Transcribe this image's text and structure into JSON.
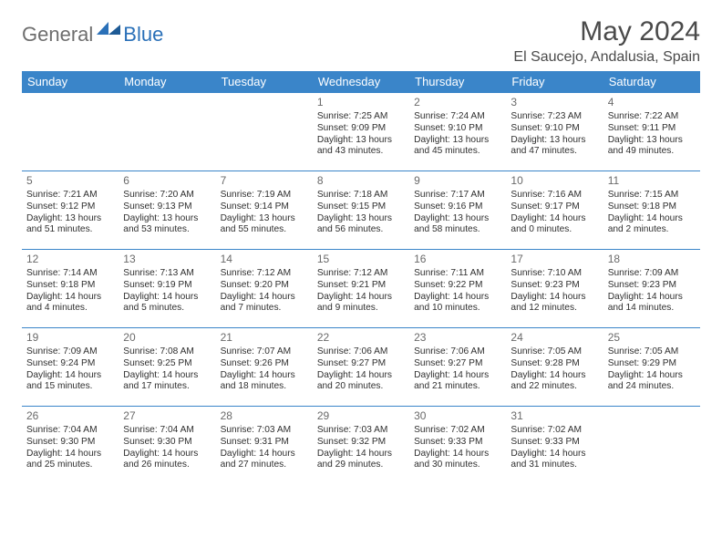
{
  "logo": {
    "general": "General",
    "blue": "Blue"
  },
  "title": "May 2024",
  "location": "El Saucejo, Andalusia, Spain",
  "colors": {
    "header_bg": "#3a85c9",
    "header_text": "#ffffff",
    "border": "#3a85c9",
    "title_color": "#4a4a4a",
    "logo_gray": "#6e6e6e",
    "logo_blue": "#2a70b8"
  },
  "weekdays": [
    "Sunday",
    "Monday",
    "Tuesday",
    "Wednesday",
    "Thursday",
    "Friday",
    "Saturday"
  ],
  "weeks": [
    [
      null,
      null,
      null,
      {
        "n": "1",
        "sr": "Sunrise: 7:25 AM",
        "ss": "Sunset: 9:09 PM",
        "d1": "Daylight: 13 hours",
        "d2": "and 43 minutes."
      },
      {
        "n": "2",
        "sr": "Sunrise: 7:24 AM",
        "ss": "Sunset: 9:10 PM",
        "d1": "Daylight: 13 hours",
        "d2": "and 45 minutes."
      },
      {
        "n": "3",
        "sr": "Sunrise: 7:23 AM",
        "ss": "Sunset: 9:10 PM",
        "d1": "Daylight: 13 hours",
        "d2": "and 47 minutes."
      },
      {
        "n": "4",
        "sr": "Sunrise: 7:22 AM",
        "ss": "Sunset: 9:11 PM",
        "d1": "Daylight: 13 hours",
        "d2": "and 49 minutes."
      }
    ],
    [
      {
        "n": "5",
        "sr": "Sunrise: 7:21 AM",
        "ss": "Sunset: 9:12 PM",
        "d1": "Daylight: 13 hours",
        "d2": "and 51 minutes."
      },
      {
        "n": "6",
        "sr": "Sunrise: 7:20 AM",
        "ss": "Sunset: 9:13 PM",
        "d1": "Daylight: 13 hours",
        "d2": "and 53 minutes."
      },
      {
        "n": "7",
        "sr": "Sunrise: 7:19 AM",
        "ss": "Sunset: 9:14 PM",
        "d1": "Daylight: 13 hours",
        "d2": "and 55 minutes."
      },
      {
        "n": "8",
        "sr": "Sunrise: 7:18 AM",
        "ss": "Sunset: 9:15 PM",
        "d1": "Daylight: 13 hours",
        "d2": "and 56 minutes."
      },
      {
        "n": "9",
        "sr": "Sunrise: 7:17 AM",
        "ss": "Sunset: 9:16 PM",
        "d1": "Daylight: 13 hours",
        "d2": "and 58 minutes."
      },
      {
        "n": "10",
        "sr": "Sunrise: 7:16 AM",
        "ss": "Sunset: 9:17 PM",
        "d1": "Daylight: 14 hours",
        "d2": "and 0 minutes."
      },
      {
        "n": "11",
        "sr": "Sunrise: 7:15 AM",
        "ss": "Sunset: 9:18 PM",
        "d1": "Daylight: 14 hours",
        "d2": "and 2 minutes."
      }
    ],
    [
      {
        "n": "12",
        "sr": "Sunrise: 7:14 AM",
        "ss": "Sunset: 9:18 PM",
        "d1": "Daylight: 14 hours",
        "d2": "and 4 minutes."
      },
      {
        "n": "13",
        "sr": "Sunrise: 7:13 AM",
        "ss": "Sunset: 9:19 PM",
        "d1": "Daylight: 14 hours",
        "d2": "and 5 minutes."
      },
      {
        "n": "14",
        "sr": "Sunrise: 7:12 AM",
        "ss": "Sunset: 9:20 PM",
        "d1": "Daylight: 14 hours",
        "d2": "and 7 minutes."
      },
      {
        "n": "15",
        "sr": "Sunrise: 7:12 AM",
        "ss": "Sunset: 9:21 PM",
        "d1": "Daylight: 14 hours",
        "d2": "and 9 minutes."
      },
      {
        "n": "16",
        "sr": "Sunrise: 7:11 AM",
        "ss": "Sunset: 9:22 PM",
        "d1": "Daylight: 14 hours",
        "d2": "and 10 minutes."
      },
      {
        "n": "17",
        "sr": "Sunrise: 7:10 AM",
        "ss": "Sunset: 9:23 PM",
        "d1": "Daylight: 14 hours",
        "d2": "and 12 minutes."
      },
      {
        "n": "18",
        "sr": "Sunrise: 7:09 AM",
        "ss": "Sunset: 9:23 PM",
        "d1": "Daylight: 14 hours",
        "d2": "and 14 minutes."
      }
    ],
    [
      {
        "n": "19",
        "sr": "Sunrise: 7:09 AM",
        "ss": "Sunset: 9:24 PM",
        "d1": "Daylight: 14 hours",
        "d2": "and 15 minutes."
      },
      {
        "n": "20",
        "sr": "Sunrise: 7:08 AM",
        "ss": "Sunset: 9:25 PM",
        "d1": "Daylight: 14 hours",
        "d2": "and 17 minutes."
      },
      {
        "n": "21",
        "sr": "Sunrise: 7:07 AM",
        "ss": "Sunset: 9:26 PM",
        "d1": "Daylight: 14 hours",
        "d2": "and 18 minutes."
      },
      {
        "n": "22",
        "sr": "Sunrise: 7:06 AM",
        "ss": "Sunset: 9:27 PM",
        "d1": "Daylight: 14 hours",
        "d2": "and 20 minutes."
      },
      {
        "n": "23",
        "sr": "Sunrise: 7:06 AM",
        "ss": "Sunset: 9:27 PM",
        "d1": "Daylight: 14 hours",
        "d2": "and 21 minutes."
      },
      {
        "n": "24",
        "sr": "Sunrise: 7:05 AM",
        "ss": "Sunset: 9:28 PM",
        "d1": "Daylight: 14 hours",
        "d2": "and 22 minutes."
      },
      {
        "n": "25",
        "sr": "Sunrise: 7:05 AM",
        "ss": "Sunset: 9:29 PM",
        "d1": "Daylight: 14 hours",
        "d2": "and 24 minutes."
      }
    ],
    [
      {
        "n": "26",
        "sr": "Sunrise: 7:04 AM",
        "ss": "Sunset: 9:30 PM",
        "d1": "Daylight: 14 hours",
        "d2": "and 25 minutes."
      },
      {
        "n": "27",
        "sr": "Sunrise: 7:04 AM",
        "ss": "Sunset: 9:30 PM",
        "d1": "Daylight: 14 hours",
        "d2": "and 26 minutes."
      },
      {
        "n": "28",
        "sr": "Sunrise: 7:03 AM",
        "ss": "Sunset: 9:31 PM",
        "d1": "Daylight: 14 hours",
        "d2": "and 27 minutes."
      },
      {
        "n": "29",
        "sr": "Sunrise: 7:03 AM",
        "ss": "Sunset: 9:32 PM",
        "d1": "Daylight: 14 hours",
        "d2": "and 29 minutes."
      },
      {
        "n": "30",
        "sr": "Sunrise: 7:02 AM",
        "ss": "Sunset: 9:33 PM",
        "d1": "Daylight: 14 hours",
        "d2": "and 30 minutes."
      },
      {
        "n": "31",
        "sr": "Sunrise: 7:02 AM",
        "ss": "Sunset: 9:33 PM",
        "d1": "Daylight: 14 hours",
        "d2": "and 31 minutes."
      },
      null
    ]
  ]
}
